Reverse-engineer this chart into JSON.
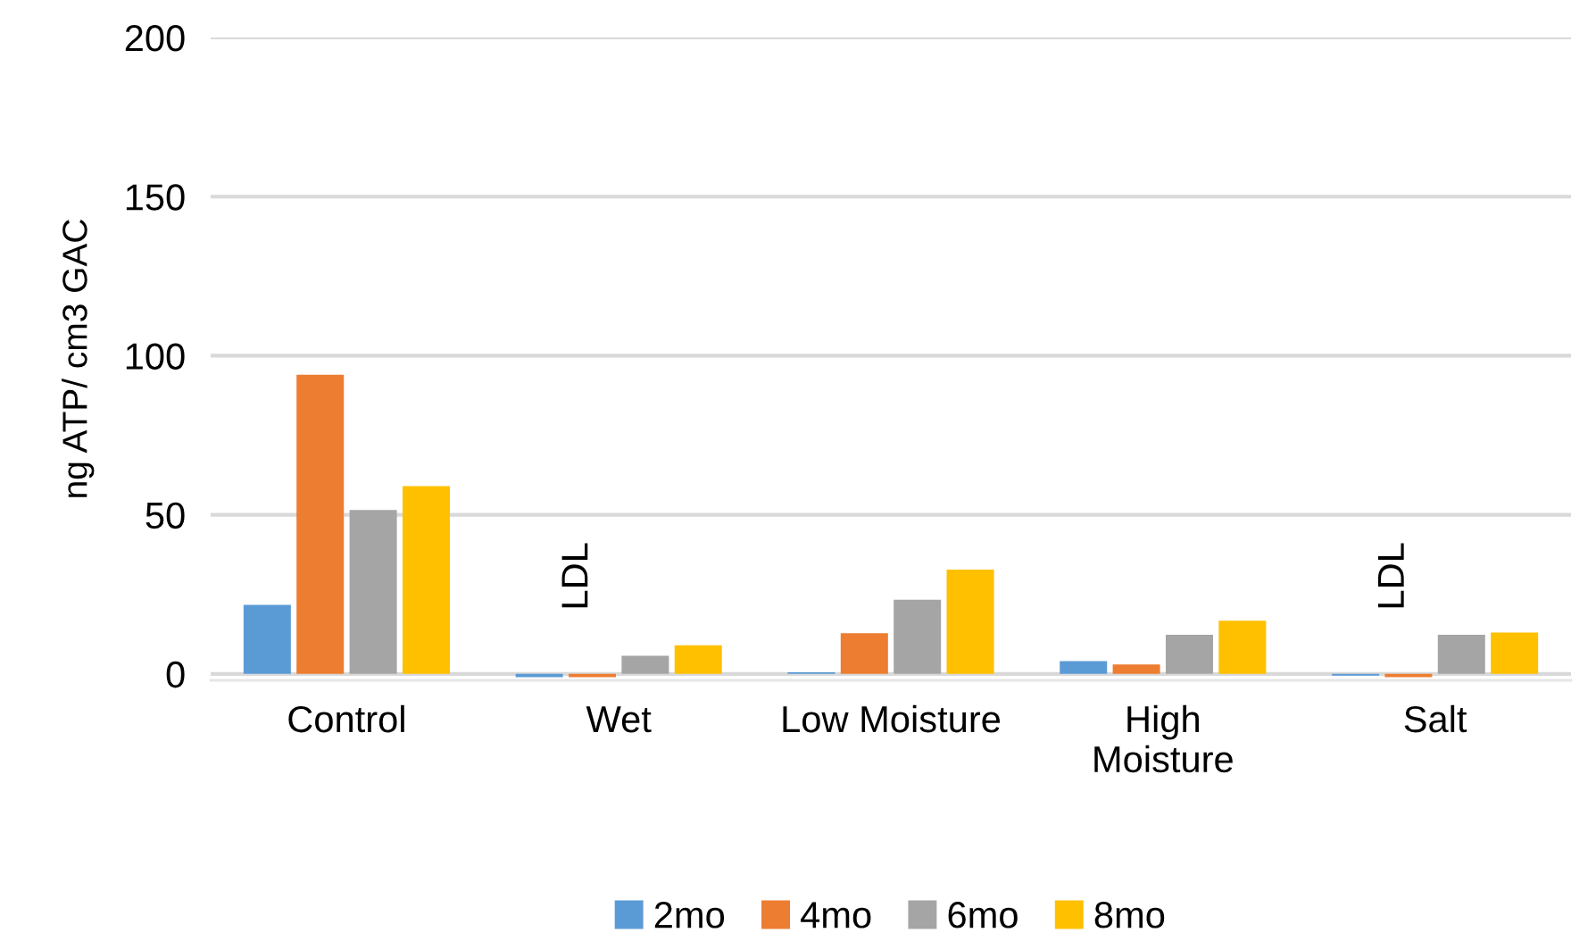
{
  "chart_data": {
    "type": "bar",
    "ylabel": "ng ATP/ cm3 GAC",
    "categories": [
      "Control",
      "Wet",
      "Low Moisture",
      "High\nMoisture",
      "Salt"
    ],
    "series": [
      {
        "name": "2mo",
        "color": "#5b9bd5",
        "values": [
          21.7,
          -1,
          0.5,
          4,
          -0.5
        ]
      },
      {
        "name": "4mo",
        "color": "#ed7d31",
        "values": [
          94,
          -1,
          12.8,
          3,
          -1
        ]
      },
      {
        "name": "6mo",
        "color": "#a5a5a5",
        "values": [
          51.5,
          5.7,
          23.3,
          12.3,
          12.3
        ]
      },
      {
        "name": "8mo",
        "color": "#ffc000",
        "values": [
          59,
          9,
          32.8,
          16.7,
          13
        ]
      }
    ],
    "ylim": [
      -2,
      200
    ],
    "yticks": [
      0,
      50,
      100,
      150,
      200
    ],
    "grid": "y",
    "legend": "bottom",
    "annotations": [
      "LDL",
      "LDL"
    ]
  }
}
